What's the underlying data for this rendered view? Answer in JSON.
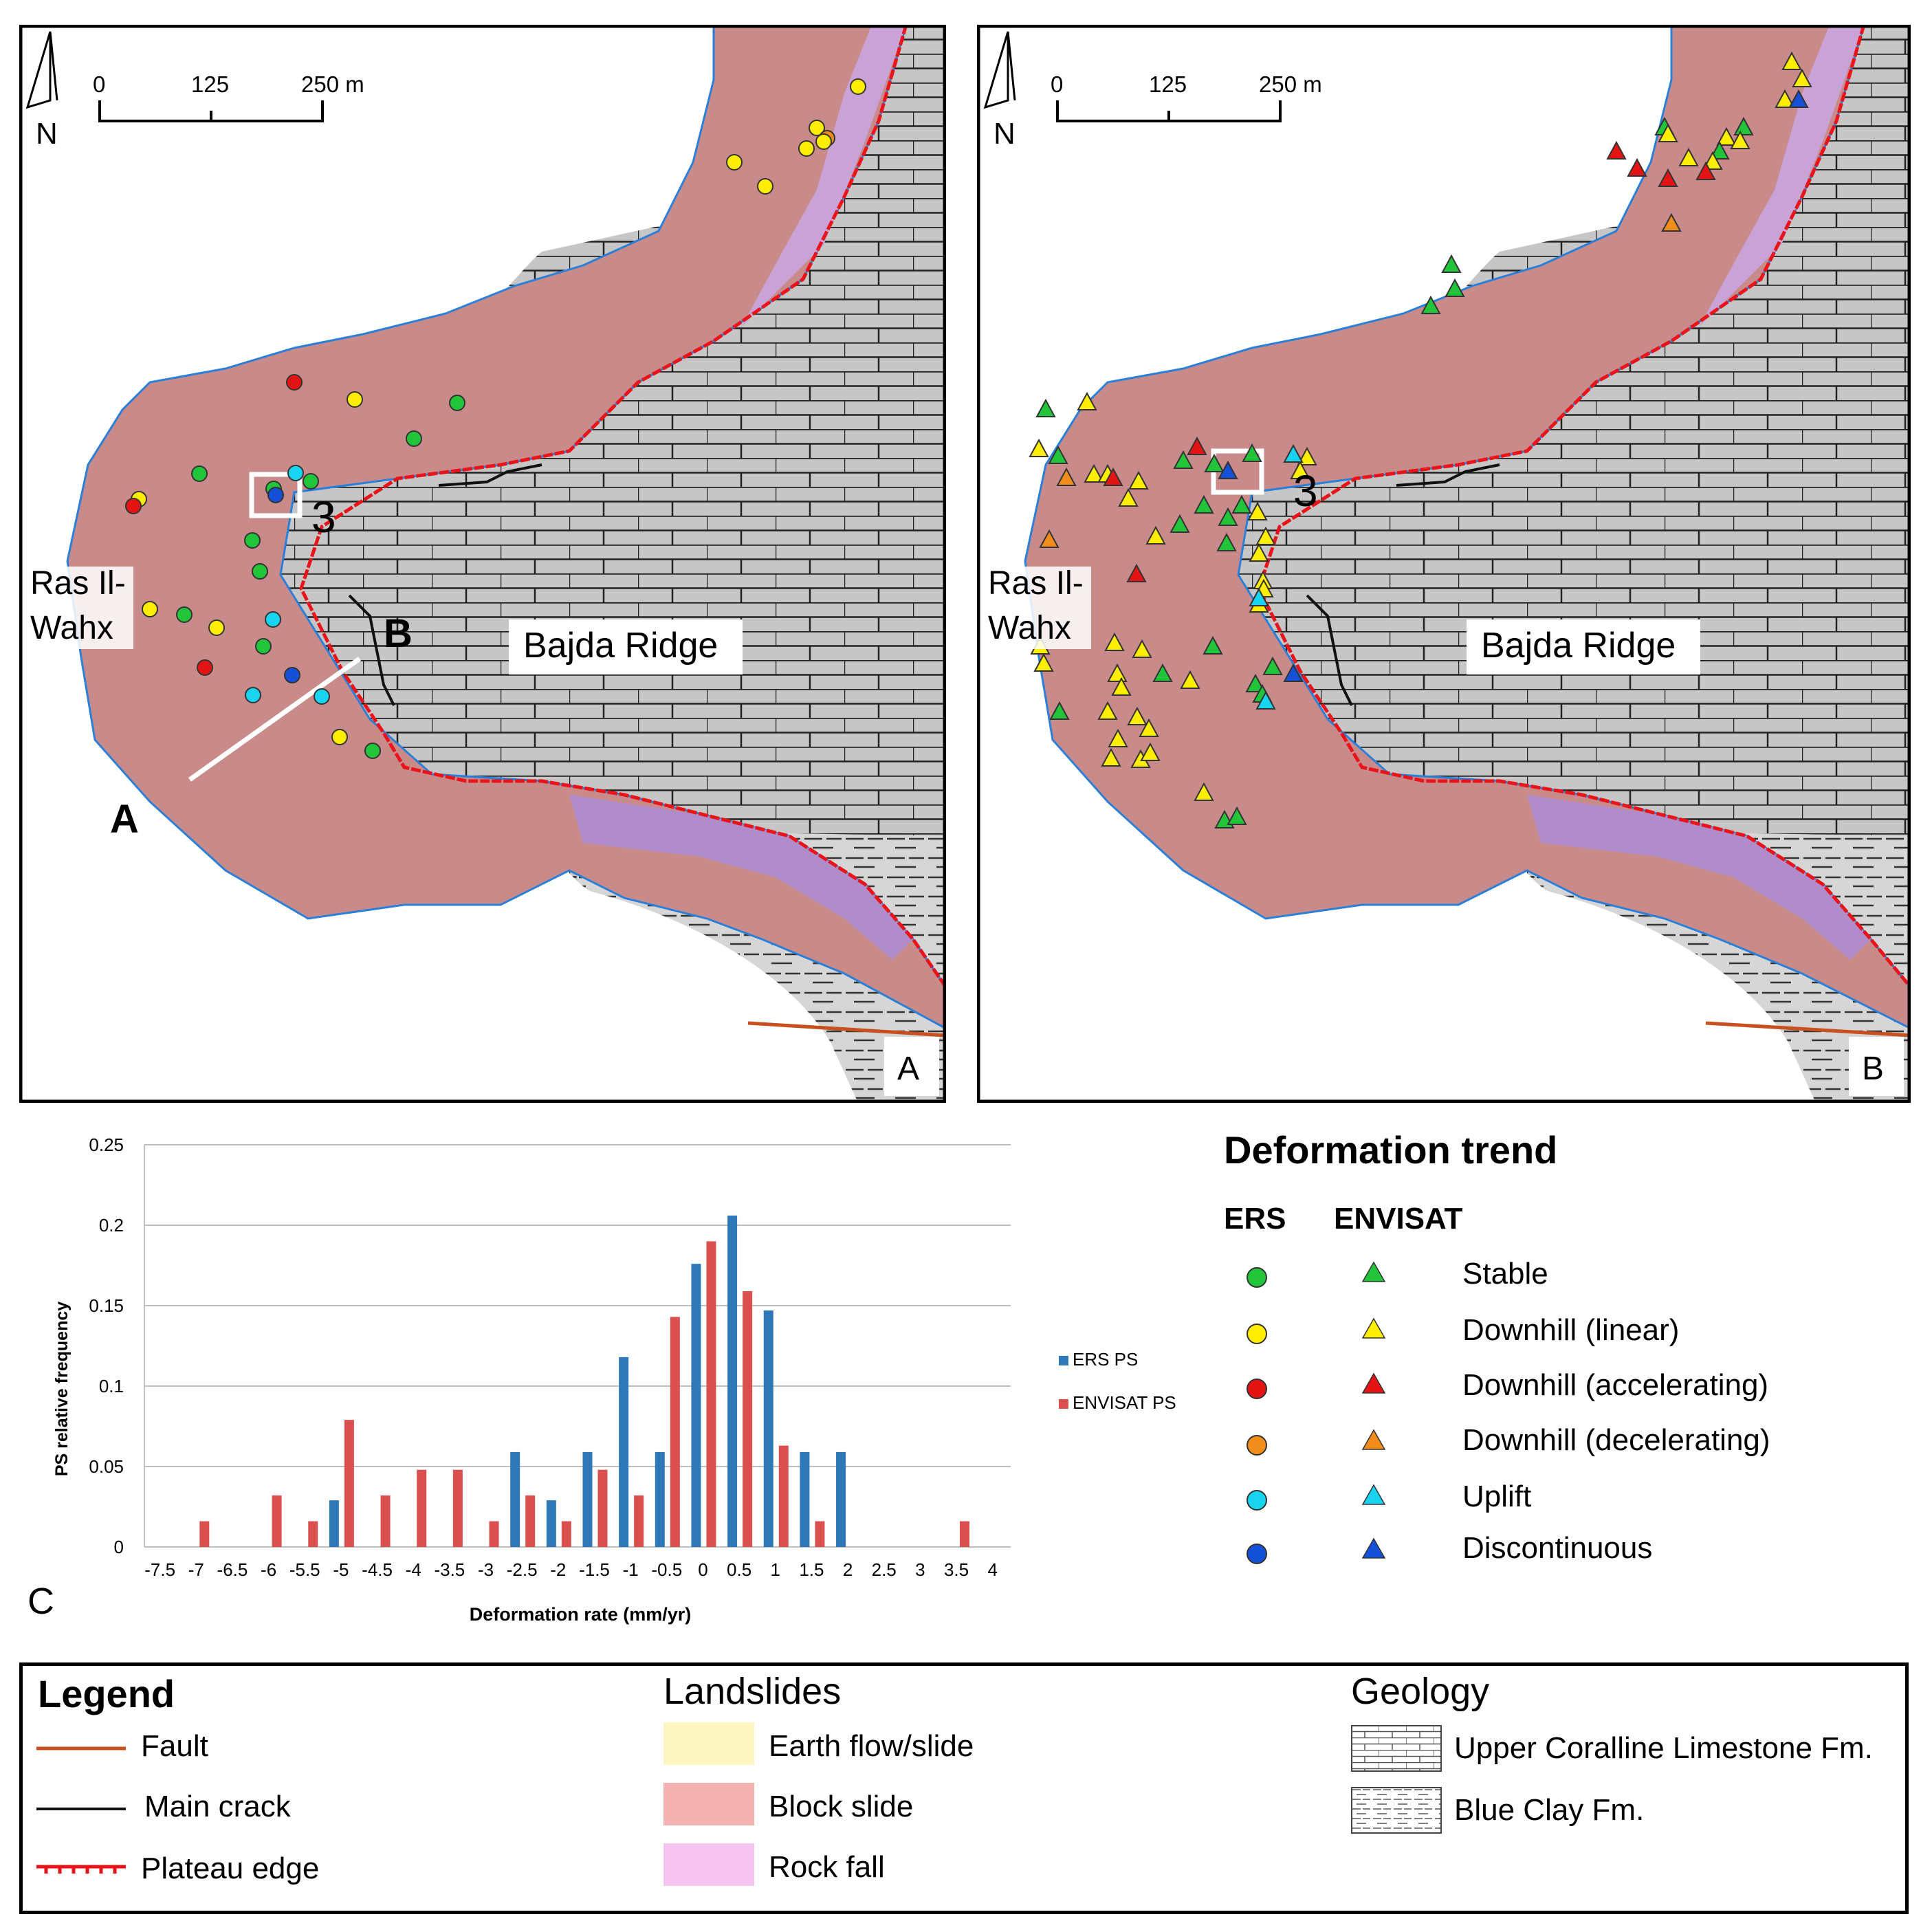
{
  "colors": {
    "block_slide": "#c98a8a",
    "rock_fall": "#c9a3d6",
    "limestone_bg": "#c4c4c4",
    "plateau_edge": "#e8141a",
    "fault": "#c8501e",
    "main_crack": "#111111",
    "shoreline": "#2a7fd8",
    "stable": "#22c43a",
    "downhill_linear": "#ffee00",
    "downhill_accelerating": "#e51414",
    "downhill_decelerating": "#f28c1a",
    "uplift": "#19d4f0",
    "discontinuous": "#1550d8",
    "ers_bar": "#2e78b8",
    "envisat_bar": "#d9504f"
  },
  "mapA": {
    "north_label": "N",
    "scale_ticks": [
      "0",
      "125",
      "250 m"
    ],
    "place_ras": [
      "Ras Il-",
      "Wahx"
    ],
    "place_bajda": "Bajda Ridge",
    "box_label": "3",
    "profile_a": "A",
    "profile_b": "B",
    "panel_label": "A"
  },
  "mapB": {
    "north_label": "N",
    "scale_ticks": [
      "0",
      "125",
      "250 m"
    ],
    "place_ras": [
      "Ras Il-",
      "Wahx"
    ],
    "place_bajda": "Bajda Ridge",
    "box_label": "3",
    "panel_label": "B"
  },
  "chart_panel_label": "C",
  "chart_data": {
    "type": "bar",
    "xlabel": "Deformation rate (mm/yr)",
    "ylabel": "PS relative frequency",
    "ylim": [
      0,
      0.25
    ],
    "yticks": [
      "0",
      "0.05",
      "0.1",
      "0.15",
      "0.2",
      "0.25"
    ],
    "xticks": [
      "-7.5",
      "-7",
      "-6.5",
      "-6",
      "-5.5",
      "-5",
      "-4.5",
      "-4",
      "-3.5",
      "-3",
      "-2.5",
      "-2",
      "-1.5",
      "-1",
      "-0.5",
      "0",
      "0.5",
      "1",
      "1.5",
      "2",
      "2.5",
      "3",
      "3.5",
      "4"
    ],
    "grid": true,
    "legend_position": "right",
    "series": [
      {
        "name": "ERS PS",
        "points": [
          [
            -5,
            0.029
          ],
          [
            -2.5,
            0.059
          ],
          [
            -2,
            0.029
          ],
          [
            -1.5,
            0.059
          ],
          [
            -1,
            0.118
          ],
          [
            -0.5,
            0.059
          ],
          [
            0,
            0.176
          ],
          [
            0.5,
            0.206
          ],
          [
            1,
            0.147
          ],
          [
            1.5,
            0.059
          ],
          [
            2,
            0.059
          ]
        ]
      },
      {
        "name": "ENVISAT PS",
        "points": [
          [
            -7,
            0.016
          ],
          [
            -6,
            0.032
          ],
          [
            -5.5,
            0.016
          ],
          [
            -5,
            0.079
          ],
          [
            -4.5,
            0.032
          ],
          [
            -4,
            0.048
          ],
          [
            -3.5,
            0.048
          ],
          [
            -3,
            0.016
          ],
          [
            -2.5,
            0.032
          ],
          [
            -2,
            0.016
          ],
          [
            -1.5,
            0.048
          ],
          [
            -1,
            0.032
          ],
          [
            -0.5,
            0.143
          ],
          [
            0,
            0.19
          ],
          [
            0.5,
            0.159
          ],
          [
            1,
            0.063
          ],
          [
            1.5,
            0.016
          ],
          [
            3.5,
            0.016
          ]
        ]
      }
    ]
  },
  "trend_legend": {
    "title": "Deformation trend",
    "col_ers": "ERS",
    "col_envisat": "ENVISAT",
    "items": [
      "Stable",
      "Downhill (linear)",
      "Downhill (accelerating)",
      "Downhill (decelerating)",
      "Uplift",
      "Discontinuous"
    ]
  },
  "legend": {
    "title": "Legend",
    "lines": [
      "Fault",
      "Main crack",
      "Plateau edge"
    ],
    "landslides_title": "Landslides",
    "landslides": [
      "Earth flow/slide",
      "Block slide",
      "Rock fall"
    ],
    "geology_title": "Geology",
    "geology": [
      "Upper Coralline Limestone Fm.",
      "Blue Clay Fm."
    ],
    "landslide_colors": [
      "#fdf6c3",
      "#f3b1b1",
      "#f6c6f1"
    ]
  }
}
